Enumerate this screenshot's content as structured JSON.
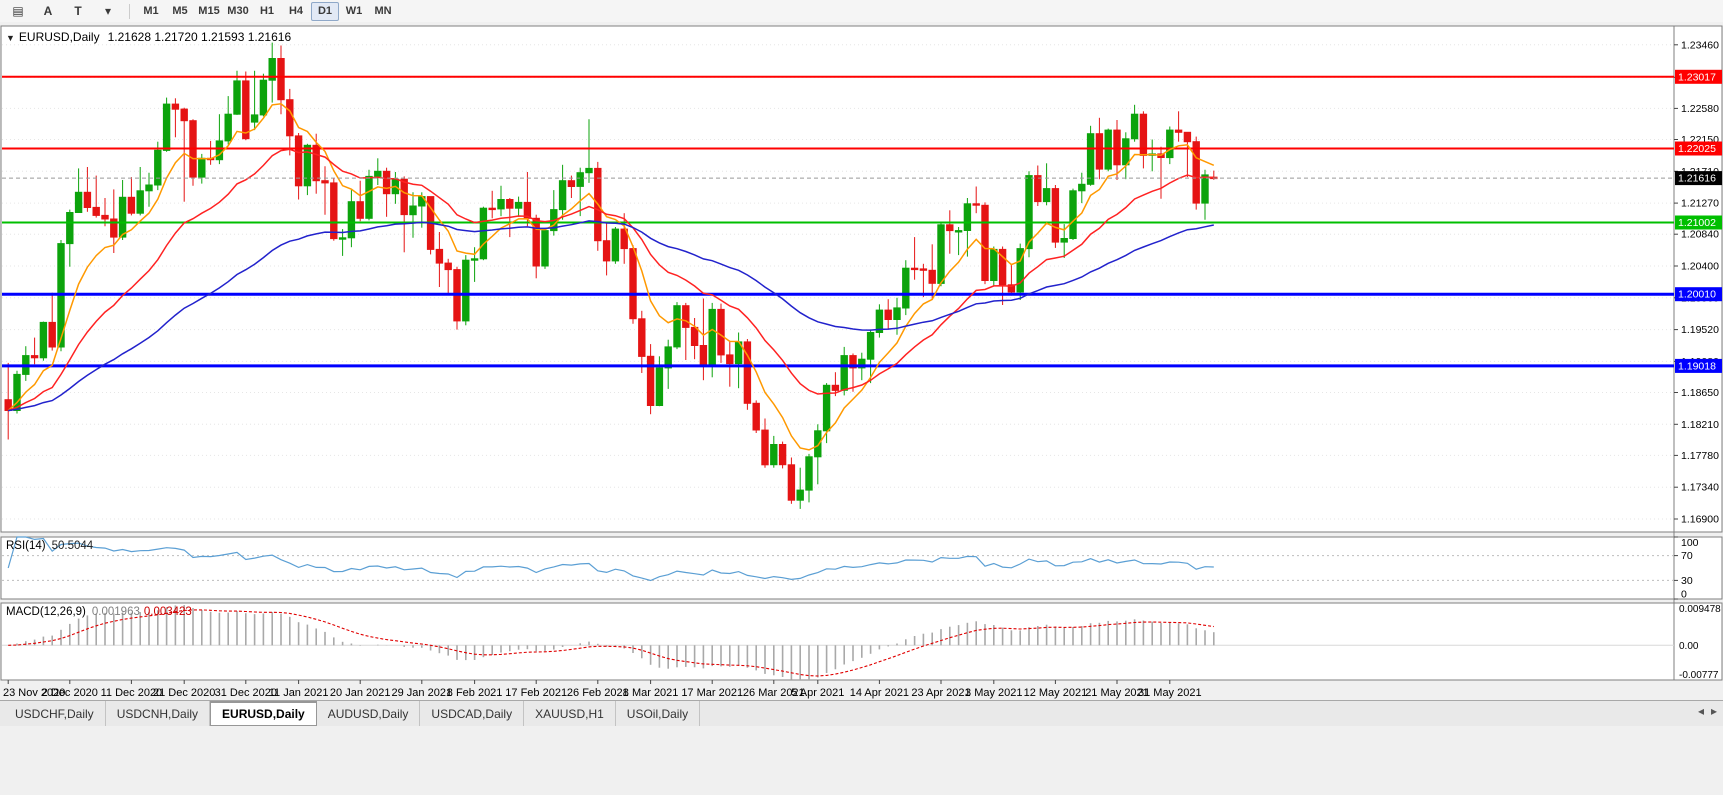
{
  "toolbar": {
    "icons": [
      {
        "name": "chart-window-icon",
        "glyph": "▤"
      },
      {
        "name": "letter-a-tool-icon",
        "glyph": "A"
      },
      {
        "name": "text-cursor-tool-icon",
        "glyph": "T"
      },
      {
        "name": "chart-type-dropdown-icon",
        "glyph": "▾"
      }
    ],
    "timeframes": [
      {
        "label": "M1"
      },
      {
        "label": "M5"
      },
      {
        "label": "M15"
      },
      {
        "label": "M30"
      },
      {
        "label": "H1"
      },
      {
        "label": "H4"
      },
      {
        "label": "D1",
        "active": true
      },
      {
        "label": "W1"
      },
      {
        "label": "MN"
      }
    ]
  },
  "chart": {
    "header": {
      "collapse_glyph": "▼",
      "title": "EURUSD,Daily",
      "ohlc": "1.21628 1.21720 1.21593 1.21616"
    },
    "price_axis": {
      "pmax": 1.2372,
      "pmin": 1.1672,
      "labels": [
        "1.23460",
        "1.23010",
        "1.22580",
        "1.22150",
        "1.21710",
        "1.21270",
        "1.20840",
        "1.20400",
        "1.19960",
        "1.19520",
        "1.19080",
        "1.18650",
        "1.18210",
        "1.17780",
        "1.17340",
        "1.16900"
      ]
    },
    "hlines": [
      {
        "price": 1.23017,
        "label": "1.23017",
        "color": "#ff0000",
        "width": 2
      },
      {
        "price": 1.22025,
        "label": "1.22025",
        "color": "#ff0000",
        "width": 2
      },
      {
        "price": 1.21002,
        "label": "1.21002",
        "color": "#00bf00",
        "width": 2
      },
      {
        "price": 1.2001,
        "label": "1.20010",
        "color": "#0000ff",
        "width": 3
      },
      {
        "price": 1.19018,
        "label": "1.19018",
        "color": "#0000ff",
        "width": 3
      }
    ],
    "current_price": {
      "price": 1.21616,
      "label": "1.21616",
      "tag_bg": "#000000",
      "line_color": "#999999"
    },
    "moving_averages": [
      {
        "name": "ma-fast",
        "period": 8,
        "color": "#ff9900"
      },
      {
        "name": "ma-mid",
        "period": 21,
        "color": "#ff2222"
      },
      {
        "name": "ma-slow",
        "period": 55,
        "color": "#2222cc"
      }
    ],
    "colors": {
      "up": "#0ca30c",
      "down": "#e51414",
      "grid": "#e6e6e6",
      "panel_border": "#7f7f7f"
    },
    "date_labels": [
      {
        "i": 0,
        "text": "23 Nov 2020"
      },
      {
        "i": 7,
        "text": "2 Dec 2020"
      },
      {
        "i": 14,
        "text": "11 Dec 2020"
      },
      {
        "i": 20,
        "text": "21 Dec 2020"
      },
      {
        "i": 27,
        "text": "31 Dec 2020"
      },
      {
        "i": 33,
        "text": "11 Jan 2021"
      },
      {
        "i": 40,
        "text": "20 Jan 2021"
      },
      {
        "i": 47,
        "text": "29 Jan 2021"
      },
      {
        "i": 53,
        "text": "8 Feb 2021"
      },
      {
        "i": 60,
        "text": "17 Feb 2021"
      },
      {
        "i": 67,
        "text": "26 Feb 2021"
      },
      {
        "i": 73,
        "text": "8 Mar 2021"
      },
      {
        "i": 80,
        "text": "17 Mar 2021"
      },
      {
        "i": 87,
        "text": "26 Mar 2021"
      },
      {
        "i": 92,
        "text": "5 Apr 2021"
      },
      {
        "i": 99,
        "text": "14 Apr 2021"
      },
      {
        "i": 106,
        "text": "23 Apr 2021"
      },
      {
        "i": 112,
        "text": "3 May 2021"
      },
      {
        "i": 119,
        "text": "12 May 2021"
      },
      {
        "i": 126,
        "text": "21 May 2021"
      },
      {
        "i": 132,
        "text": "31 May 2021"
      }
    ],
    "candles": [
      [
        1.1855,
        1.1906,
        1.18,
        1.184
      ],
      [
        1.184,
        1.1895,
        1.1836,
        1.189
      ],
      [
        1.189,
        1.1929,
        1.1881,
        1.1916
      ],
      [
        1.1916,
        1.1941,
        1.1904,
        1.1913
      ],
      [
        1.1913,
        1.1963,
        1.1909,
        1.1962
      ],
      [
        1.1962,
        1.2003,
        1.1923,
        1.1928
      ],
      [
        1.1928,
        1.2076,
        1.1922,
        1.2071
      ],
      [
        1.2071,
        1.2118,
        1.2039,
        1.2114
      ],
      [
        1.2114,
        1.2175,
        1.2114,
        1.2142
      ],
      [
        1.2142,
        1.2177,
        1.2115,
        1.2121
      ],
      [
        1.2121,
        1.2165,
        1.2107,
        1.211
      ],
      [
        1.211,
        1.2134,
        1.2095,
        1.2105
      ],
      [
        1.2105,
        1.2146,
        1.2058,
        1.208
      ],
      [
        1.208,
        1.2159,
        1.2076,
        1.2135
      ],
      [
        1.2135,
        1.2163,
        1.211,
        1.2113
      ],
      [
        1.2113,
        1.2177,
        1.211,
        1.2144
      ],
      [
        1.2144,
        1.2169,
        1.2122,
        1.2152
      ],
      [
        1.2152,
        1.2212,
        1.2145,
        1.22
      ],
      [
        1.22,
        1.2273,
        1.2198,
        1.2264
      ],
      [
        1.2264,
        1.2272,
        1.2218,
        1.2257
      ],
      [
        1.2257,
        1.2259,
        1.2129,
        1.2241
      ],
      [
        1.2241,
        1.2243,
        1.2151,
        1.2163
      ],
      [
        1.2163,
        1.2195,
        1.2154,
        1.2189
      ],
      [
        1.2189,
        1.2213,
        1.218,
        1.2187
      ],
      [
        1.2187,
        1.225,
        1.2181,
        1.2213
      ],
      [
        1.2213,
        1.2275,
        1.2208,
        1.225
      ],
      [
        1.225,
        1.231,
        1.2249,
        1.2296
      ],
      [
        1.2296,
        1.2309,
        1.2214,
        1.2216
      ],
      [
        1.2239,
        1.231,
        1.2228,
        1.2249
      ],
      [
        1.2249,
        1.2306,
        1.2247,
        1.2297
      ],
      [
        1.2297,
        1.2349,
        1.2266,
        1.2327
      ],
      [
        1.2327,
        1.2345,
        1.225,
        1.227
      ],
      [
        1.227,
        1.2285,
        1.2193,
        1.222
      ],
      [
        1.222,
        1.2224,
        1.2132,
        1.2151
      ],
      [
        1.2151,
        1.2209,
        1.2138,
        1.2207
      ],
      [
        1.2207,
        1.2223,
        1.214,
        1.2158
      ],
      [
        1.2158,
        1.2178,
        1.2111,
        1.2155
      ],
      [
        1.2155,
        1.2161,
        1.2075,
        1.2078
      ],
      [
        1.2078,
        1.2091,
        1.2054,
        1.2079
      ],
      [
        1.2079,
        1.2145,
        1.2066,
        1.2129
      ],
      [
        1.2129,
        1.2158,
        1.2102,
        1.2106
      ],
      [
        1.2106,
        1.2173,
        1.2103,
        1.2164
      ],
      [
        1.2164,
        1.2189,
        1.2152,
        1.2171
      ],
      [
        1.2171,
        1.2176,
        1.2108,
        1.214
      ],
      [
        1.214,
        1.217,
        1.2126,
        1.216
      ],
      [
        1.216,
        1.2164,
        1.2059,
        1.2111
      ],
      [
        1.2111,
        1.2142,
        1.2079,
        1.2123
      ],
      [
        1.2123,
        1.2142,
        1.2093,
        1.2136
      ],
      [
        1.2136,
        1.2136,
        1.2056,
        1.2063
      ],
      [
        1.2063,
        1.2087,
        1.2011,
        1.2044
      ],
      [
        1.2044,
        1.205,
        1.2002,
        1.2035
      ],
      [
        1.2035,
        1.2039,
        1.1952,
        1.1964
      ],
      [
        1.1964,
        1.2055,
        1.1958,
        1.2048
      ],
      [
        1.2048,
        1.2066,
        1.2018,
        1.205
      ],
      [
        1.205,
        1.2122,
        1.2048,
        1.212
      ],
      [
        1.212,
        1.2144,
        1.2106,
        1.2119
      ],
      [
        1.2119,
        1.2151,
        1.2109,
        1.2132
      ],
      [
        1.2132,
        1.2134,
        1.208,
        1.212
      ],
      [
        1.212,
        1.2136,
        1.2108,
        1.2128
      ],
      [
        1.2128,
        1.217,
        1.2095,
        1.2106
      ],
      [
        1.2106,
        1.2111,
        1.2023,
        1.204
      ],
      [
        1.204,
        1.2091,
        1.2036,
        1.2089
      ],
      [
        1.2089,
        1.2145,
        1.2082,
        1.2118
      ],
      [
        1.2118,
        1.218,
        1.2104,
        1.2158
      ],
      [
        1.2158,
        1.2165,
        1.2134,
        1.215
      ],
      [
        1.215,
        1.2176,
        1.2109,
        1.2169
      ],
      [
        1.2169,
        1.2243,
        1.2155,
        1.2175
      ],
      [
        1.2175,
        1.2184,
        1.2061,
        1.2075
      ],
      [
        1.2075,
        1.2101,
        1.2027,
        1.2047
      ],
      [
        1.2047,
        1.2094,
        1.2043,
        1.2091
      ],
      [
        1.2091,
        1.2113,
        1.2043,
        1.2064
      ],
      [
        1.2064,
        1.2069,
        1.196,
        1.1967
      ],
      [
        1.1967,
        1.1978,
        1.1892,
        1.1915
      ],
      [
        1.1915,
        1.1932,
        1.1835,
        1.1847
      ],
      [
        1.1847,
        1.1915,
        1.1846,
        1.1899
      ],
      [
        1.1899,
        1.1938,
        1.187,
        1.1928
      ],
      [
        1.1928,
        1.199,
        1.1925,
        1.1985
      ],
      [
        1.1985,
        1.1989,
        1.191,
        1.1955
      ],
      [
        1.1955,
        1.1968,
        1.1911,
        1.193
      ],
      [
        1.193,
        1.1995,
        1.1882,
        1.1901
      ],
      [
        1.1901,
        1.1989,
        1.1886,
        1.198
      ],
      [
        1.198,
        1.1988,
        1.1906,
        1.1917
      ],
      [
        1.1917,
        1.1935,
        1.1873,
        1.1905
      ],
      [
        1.1905,
        1.1948,
        1.1871,
        1.1935
      ],
      [
        1.1935,
        1.1939,
        1.1841,
        1.185
      ],
      [
        1.185,
        1.1854,
        1.1809,
        1.1813
      ],
      [
        1.1813,
        1.1829,
        1.1761,
        1.1765
      ],
      [
        1.1765,
        1.1805,
        1.1761,
        1.1793
      ],
      [
        1.1793,
        1.1797,
        1.176,
        1.1765
      ],
      [
        1.1765,
        1.1775,
        1.1711,
        1.1716
      ],
      [
        1.1716,
        1.1761,
        1.1704,
        1.173
      ],
      [
        1.173,
        1.178,
        1.1713,
        1.1776
      ],
      [
        1.1776,
        1.1821,
        1.1738,
        1.1812
      ],
      [
        1.1812,
        1.1878,
        1.1795,
        1.1875
      ],
      [
        1.1875,
        1.1893,
        1.186,
        1.1868
      ],
      [
        1.1868,
        1.1928,
        1.1861,
        1.1916
      ],
      [
        1.1916,
        1.1919,
        1.1866,
        1.1899
      ],
      [
        1.1899,
        1.192,
        1.1882,
        1.1911
      ],
      [
        1.1911,
        1.1952,
        1.1878,
        1.1948
      ],
      [
        1.1948,
        1.1987,
        1.1941,
        1.1979
      ],
      [
        1.1979,
        1.1994,
        1.1952,
        1.1966
      ],
      [
        1.1966,
        1.1996,
        1.1945,
        1.1982
      ],
      [
        1.1982,
        1.2048,
        1.1972,
        1.2037
      ],
      [
        1.2037,
        1.208,
        1.2021,
        1.2036
      ],
      [
        1.2036,
        1.2043,
        1.1997,
        1.2034
      ],
      [
        1.2034,
        1.207,
        1.1993,
        1.2016
      ],
      [
        1.2016,
        1.2101,
        1.2012,
        1.2097
      ],
      [
        1.2097,
        1.2117,
        1.2057,
        1.2089
      ],
      [
        1.2089,
        1.2094,
        1.2055,
        1.2089
      ],
      [
        1.2089,
        1.2134,
        1.2053,
        1.2126
      ],
      [
        1.2126,
        1.215,
        1.2113,
        1.2124
      ],
      [
        1.2124,
        1.2128,
        1.2015,
        1.202
      ],
      [
        1.202,
        1.2067,
        1.2013,
        1.2063
      ],
      [
        1.2063,
        1.2067,
        1.1986,
        1.2014
      ],
      [
        1.2014,
        1.2043,
        1.1999,
        1.2004
      ],
      [
        1.2004,
        1.2071,
        1.1993,
        1.2064
      ],
      [
        1.2064,
        1.2171,
        1.2052,
        1.2165
      ],
      [
        1.2165,
        1.2179,
        1.2123,
        1.2129
      ],
      [
        1.2129,
        1.2182,
        1.2124,
        1.2147
      ],
      [
        1.2147,
        1.2152,
        1.2065,
        1.2073
      ],
      [
        1.2073,
        1.2098,
        1.2051,
        1.2078
      ],
      [
        1.2078,
        1.2147,
        1.2076,
        1.2144
      ],
      [
        1.2144,
        1.2169,
        1.2127,
        1.2153
      ],
      [
        1.2153,
        1.2234,
        1.2151,
        1.2223
      ],
      [
        1.2223,
        1.2245,
        1.216,
        1.2174
      ],
      [
        1.2174,
        1.223,
        1.2171,
        1.2228
      ],
      [
        1.2228,
        1.2242,
        1.2159,
        1.218
      ],
      [
        1.218,
        1.2225,
        1.216,
        1.2216
      ],
      [
        1.2216,
        1.2263,
        1.2212,
        1.225
      ],
      [
        1.225,
        1.2254,
        1.2175,
        1.2193
      ],
      [
        1.2193,
        1.2215,
        1.2171,
        1.2195
      ],
      [
        1.2195,
        1.2205,
        1.2133,
        1.219
      ],
      [
        1.219,
        1.2233,
        1.2181,
        1.2228
      ],
      [
        1.2228,
        1.2254,
        1.2212,
        1.2225
      ],
      [
        1.2225,
        1.2225,
        1.2163,
        1.2212
      ],
      [
        1.2212,
        1.2219,
        1.2118,
        1.2127
      ],
      [
        1.2127,
        1.2173,
        1.2104,
        1.2166
      ],
      [
        1.21628,
        1.2172,
        1.21593,
        1.21616
      ]
    ]
  },
  "rsi": {
    "label": "RSI(14)",
    "value": "50.5044",
    "period": 14,
    "axis_labels": [
      "100",
      "70",
      "30",
      "0"
    ],
    "level_lines": [
      70,
      30
    ],
    "color": "#5b9fd4"
  },
  "macd": {
    "label": "MACD(12,26,9)",
    "value_main": "0.001963",
    "value_signal": "0.003423",
    "fast": 12,
    "slow": 26,
    "signal": 9,
    "max": 0.009478,
    "min": -0.00777,
    "axis_labels": [
      "0.009478",
      "0.00",
      "-0.00777"
    ],
    "hist_color": "#a9a9a9",
    "signal_color": "#e00000"
  },
  "tabs": {
    "items": [
      {
        "label": "USDCHF,Daily"
      },
      {
        "label": "USDCNH,Daily"
      },
      {
        "label": "EURUSD,Daily",
        "active": true
      },
      {
        "label": "AUDUSD,Daily"
      },
      {
        "label": "USDCAD,Daily"
      },
      {
        "label": "XAUUSD,H1"
      },
      {
        "label": "USOil,Daily"
      }
    ],
    "scroll_left_glyph": "◂",
    "scroll_right_glyph": "▸"
  }
}
